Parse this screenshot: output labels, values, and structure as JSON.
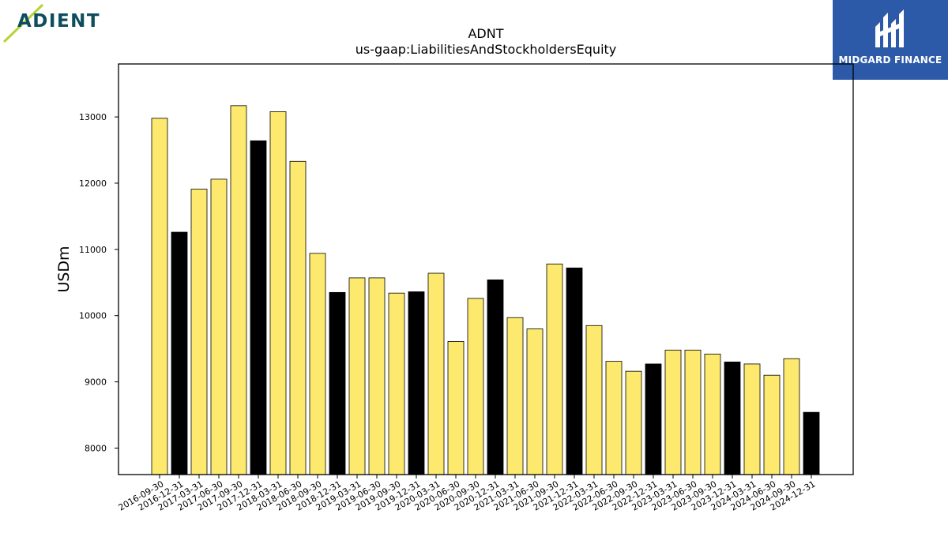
{
  "brand": {
    "left_logo_text": "ADIENT",
    "right_logo_text": "MIDGARD FINANCE",
    "right_logo_color": "#2d5aa8",
    "left_logo_color": "#0e4d5c",
    "left_logo_accent": "#b6d433"
  },
  "chart_data": {
    "type": "bar",
    "title": "ADNT",
    "subtitle": "us-gaap:LiabilitiesAndStockholdersEquity",
    "xlabel": "",
    "ylabel": "USDm",
    "ylim": [
      7600,
      13800
    ],
    "yticks": [
      8000,
      9000,
      10000,
      11000,
      12000,
      13000
    ],
    "grid": false,
    "colors": {
      "quarter": "#fde96e",
      "fiscal_year_end": "#000000",
      "edge": "#000000"
    },
    "categories": [
      "2016-09-30",
      "2016-12-31",
      "2017-03-31",
      "2017-06-30",
      "2017-09-30",
      "2017-12-31",
      "2018-03-31",
      "2018-06-30",
      "2018-09-30",
      "2018-12-31",
      "2019-03-31",
      "2019-06-30",
      "2019-09-30",
      "2019-12-31",
      "2020-03-31",
      "2020-06-30",
      "2020-09-30",
      "2020-12-31",
      "2021-03-31",
      "2021-06-30",
      "2021-09-30",
      "2021-12-31",
      "2022-03-31",
      "2022-06-30",
      "2022-09-30",
      "2022-12-31",
      "2023-03-31",
      "2023-06-30",
      "2023-09-30",
      "2023-12-31",
      "2024-03-31",
      "2024-06-30",
      "2024-09-30",
      "2024-12-31"
    ],
    "values": [
      12980,
      11260,
      11910,
      12060,
      13170,
      12640,
      13080,
      12330,
      10940,
      10350,
      10570,
      10570,
      10340,
      10360,
      10640,
      9610,
      10260,
      10540,
      9970,
      9800,
      10780,
      10720,
      9850,
      9310,
      9160,
      9270,
      9480,
      9480,
      9420,
      9300,
      9270,
      9100,
      9350,
      8540
    ],
    "highlighted": [
      false,
      true,
      false,
      false,
      false,
      true,
      false,
      false,
      false,
      true,
      false,
      false,
      false,
      true,
      false,
      false,
      false,
      true,
      false,
      false,
      false,
      true,
      false,
      false,
      false,
      true,
      false,
      false,
      false,
      true,
      false,
      false,
      false,
      true
    ]
  }
}
